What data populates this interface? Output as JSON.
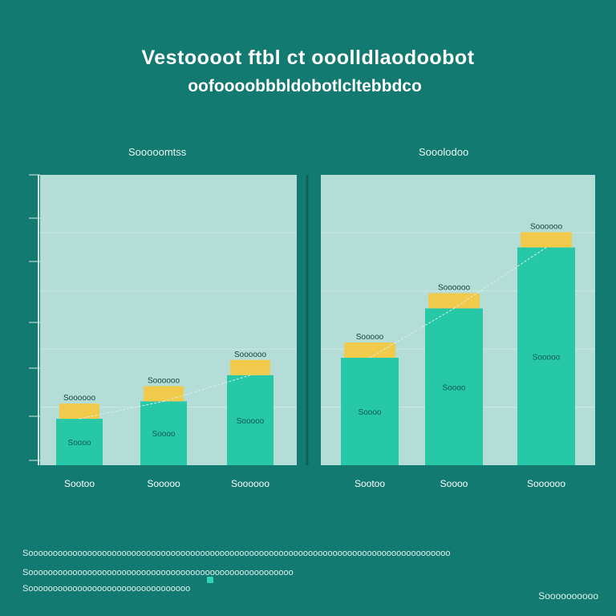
{
  "title": "Vestoooot ftbl ct ooolldlaodoobot",
  "subtitle": "oofoooobbbldobotlcltebbdco",
  "colors": {
    "background": "#127a70",
    "plot_area": "#b4ddd8",
    "bar": "#26c8a7",
    "cap": "#f1c94b",
    "trend": "#d8efe9"
  },
  "chart_data": [
    {
      "type": "bar",
      "title": "Sooooomtss",
      "categories": [
        "Sootoo",
        "Sooooo",
        "Soooooo"
      ],
      "values": [
        16,
        22,
        31
      ],
      "bar_labels": [
        "Soooo",
        "Soooo",
        "Sooooo"
      ],
      "cap_labels": [
        "Soooooo",
        "Soooooo",
        "Soooooo"
      ],
      "ytick_labels": [
        "",
        "",
        "",
        "",
        "",
        "",
        ""
      ],
      "ylim": [
        0,
        100
      ],
      "grid": true
    },
    {
      "type": "bar",
      "title": "Sooolodoo",
      "categories": [
        "Sootoo",
        "Soooo",
        "Soooooo"
      ],
      "values": [
        37,
        54,
        75
      ],
      "bar_labels": [
        "Soooo",
        "Soooo",
        "Sooooo"
      ],
      "cap_labels": [
        "Sooooo",
        "Soooooo",
        "Soooooo"
      ],
      "ylim": [
        0,
        100
      ],
      "grid": true
    }
  ],
  "footnotes": [
    "Soooooooooooooooooooooooooooooooooooooooooooooooooooooooooooooooooooooooooooooooooooooo",
    "Soooooooooooooooooooooooooooooooooooooooooooooooooooooo",
    "Sooooooooooooooooooooooooooooooooo"
  ],
  "source": "Soooooooooo"
}
